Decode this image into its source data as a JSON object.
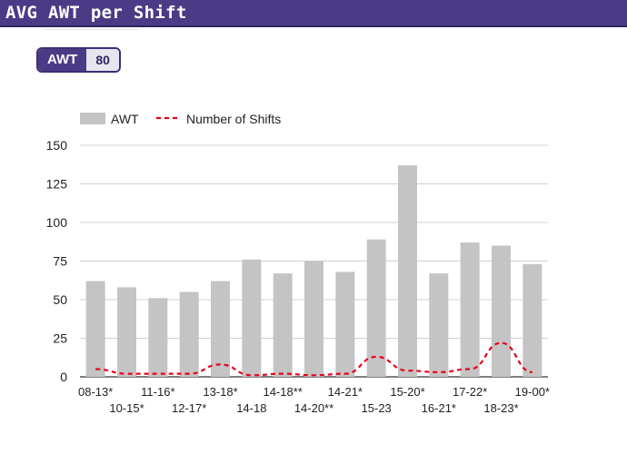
{
  "header": {
    "title": "AVG AWT per Shift"
  },
  "badge": {
    "label": "AWT",
    "value": "80"
  },
  "chart_data": {
    "type": "bar",
    "categories": [
      "08-13*",
      "10-15*",
      "11-16*",
      "12-17*",
      "13-18*",
      "14-18",
      "14-18**",
      "14-20**",
      "14-21*",
      "15-23",
      "15-20*",
      "16-21*",
      "17-22*",
      "18-23*",
      "19-00*"
    ],
    "series": [
      {
        "name": "AWT",
        "type": "bar",
        "color": "#c4c4c4",
        "values": [
          62,
          58,
          51,
          55,
          62,
          76,
          67,
          75,
          68,
          89,
          137,
          67,
          87,
          85,
          73
        ]
      },
      {
        "name": "Number of Shifts",
        "type": "line",
        "style": "dashed",
        "color": "#e8001c",
        "values": [
          5,
          2,
          2,
          2,
          8,
          1,
          2,
          1,
          2,
          13,
          4,
          3,
          5,
          22,
          3
        ]
      }
    ],
    "ylim": [
      0,
      150
    ],
    "yticks": [
      "0",
      "25",
      "50",
      "75",
      "100",
      "125",
      "150"
    ],
    "legend_position": "top-left",
    "grid": true
  }
}
